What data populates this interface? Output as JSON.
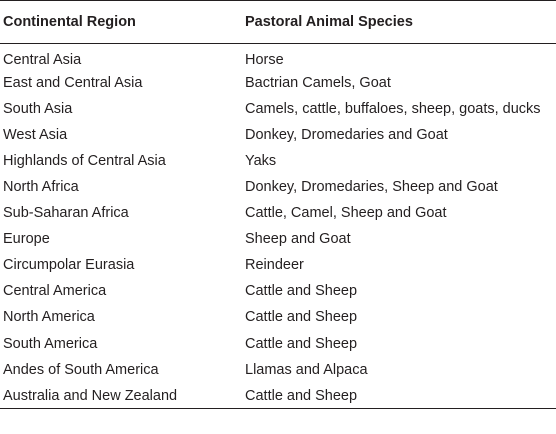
{
  "table": {
    "headers": [
      "Continental Region",
      "Pastoral Animal Species"
    ],
    "rows": [
      [
        "Central Asia",
        "Horse"
      ],
      [
        "East and Central Asia",
        "Bactrian Camels, Goat"
      ],
      [
        "South Asia",
        "Camels, cattle, buffaloes, sheep, goats, ducks"
      ],
      [
        "West Asia",
        "Donkey, Dromedaries and Goat"
      ],
      [
        "Highlands of Central Asia",
        "Yaks"
      ],
      [
        "North Africa",
        "Donkey, Dromedaries, Sheep and Goat"
      ],
      [
        "Sub-Saharan Africa",
        "Cattle, Camel, Sheep and Goat"
      ],
      [
        "Europe",
        "Sheep and Goat"
      ],
      [
        "Circumpolar Eurasia",
        "Reindeer"
      ],
      [
        "Central America",
        "Cattle and Sheep"
      ],
      [
        "North America",
        "Cattle and Sheep"
      ],
      [
        "South America",
        "Cattle and Sheep"
      ],
      [
        "Andes of South America",
        "Llamas and Alpaca"
      ],
      [
        "Australia and New Zealand",
        "Cattle and Sheep"
      ]
    ]
  }
}
